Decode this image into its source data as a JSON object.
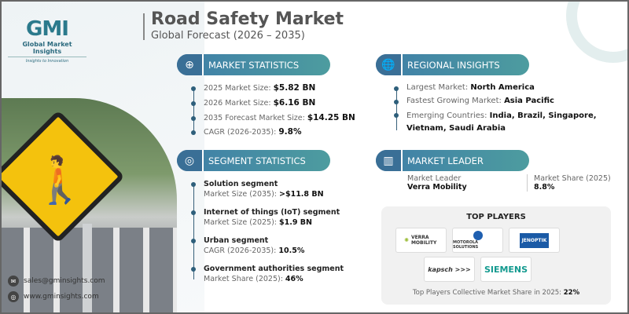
{
  "brand": {
    "logo": "GMI",
    "name": "Global Market Insights",
    "tagline": "Insights to Innovation"
  },
  "header": {
    "title": "Road Safety Market",
    "subtitle": "Global Forecast (2026 – 2035)"
  },
  "contact": {
    "email": "sales@gminsights.com",
    "website": "www.gminsights.com"
  },
  "market_statistics": {
    "heading": "MARKET STATISTICS",
    "icon": "globe-chart-icon",
    "items": [
      {
        "label": "2025 Market Size: ",
        "value": "$5.82 BN"
      },
      {
        "label": "2026 Market Size: ",
        "value": "$6.16 BN"
      },
      {
        "label": "2035 Forecast Market Size: ",
        "value": "$14.25 BN"
      },
      {
        "label": "CAGR (2026-2035): ",
        "value": "9.8%"
      }
    ]
  },
  "segment_statistics": {
    "heading": "SEGMENT STATISTICS",
    "icon": "target-icon",
    "items": [
      {
        "title": "Solution segment",
        "label": "Market Size (2035): ",
        "value": ">$11.8 BN"
      },
      {
        "title": "Internet of things (IoT) segment",
        "label": "Market Size (2025): ",
        "value": "$1.9 BN"
      },
      {
        "title": "Urban segment",
        "label": "CAGR (2026-2035): ",
        "value": "10.5%"
      },
      {
        "title": "Government authorities segment",
        "label": "Market Share (2025): ",
        "value": "46%"
      }
    ]
  },
  "regional_insights": {
    "heading": "REGIONAL INSIGHTS",
    "icon": "globe-icon",
    "items": [
      {
        "label": "Largest Market: ",
        "value": "North America"
      },
      {
        "label": "Fastest Growing Market: ",
        "value": "Asia Pacific"
      },
      {
        "label": "Emerging Countries: ",
        "value": "India, Brazil, Singapore, Vietnam, Saudi Arabia"
      }
    ]
  },
  "market_leader": {
    "heading": "MARKET LEADER",
    "icon": "bar-chart-icon",
    "leader_label": "Market Leader",
    "leader": "Verra Mobility",
    "share_label": "Market Share (2025)",
    "share": "8.8%"
  },
  "top_players": {
    "heading": "TOP PLAYERS",
    "logos": [
      "VERRA MOBILITY",
      "MOTOROLA SOLUTIONS",
      "JENOPTIK",
      "kapsch >>>",
      "SIEMENS"
    ],
    "footer_label": "Top Players Collective Market Share in 2025: ",
    "footer_value": "22%"
  },
  "colors": {
    "accent": "#3f7ea8",
    "teal": "#4d9c9f",
    "sign": "#f4c20d"
  }
}
